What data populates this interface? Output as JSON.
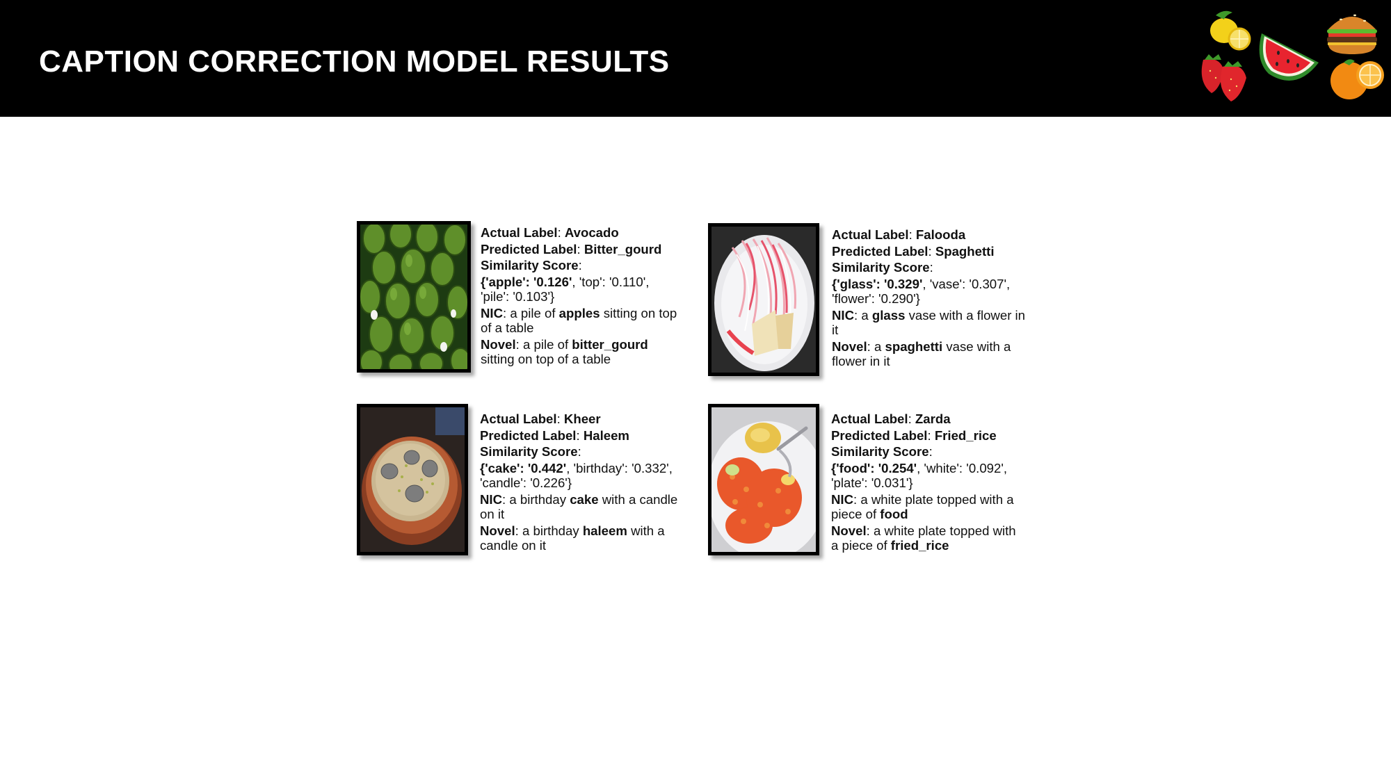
{
  "title": "CAPTION CORRECTION MODEL RESULTS",
  "colors": {
    "header_bg": "#000000",
    "title": "#ffffff"
  },
  "header_art": [
    "lemon-icon",
    "watermelon-icon",
    "burger-icon",
    "strawberry-icon",
    "orange-icon"
  ],
  "labels": {
    "actual": "Actual Label",
    "predicted": "Predicted Label",
    "similarity": "Similarity Score",
    "nic": "NIC",
    "novel": "Novel",
    "sep": ": "
  },
  "results": [
    {
      "image": "avocado-photo",
      "actual": "Avocado",
      "predicted": "Bitter_gourd",
      "score_top": "'apple': '0.126'",
      "score_rest1": ", 'top': '0.110',",
      "score_rest2": "'pile': '0.103'}",
      "nic_pre": "a pile of ",
      "nic_word": "apples",
      "nic_post1": " sitting on top",
      "nic_post2": "of a table",
      "novel_pre": "a pile of ",
      "novel_word": "bitter_gourd",
      "novel_post1": "",
      "novel_post2": "sitting on top of a table"
    },
    {
      "image": "falooda-photo",
      "actual": "Falooda",
      "predicted": "Spaghetti",
      "score_top": "'glass': '0.329'",
      "score_rest1": ", 'vase': '0.307',",
      "score_rest2": "'flower': '0.290'}",
      "nic_pre": "a ",
      "nic_word": "glass",
      "nic_post1": " vase with a flower in",
      "nic_post2": "it",
      "novel_pre": "a ",
      "novel_word": "spaghetti",
      "novel_post1": " vase with a",
      "novel_post2": "flower in it"
    },
    {
      "image": "kheer-photo",
      "actual": "Kheer",
      "predicted": "Haleem",
      "score_top": "'cake': '0.442'",
      "score_rest1": ", 'birthday': '0.332',",
      "score_rest2": "'candle': '0.226'}",
      "nic_pre": "a birthday ",
      "nic_word": "cake",
      "nic_post1": " with a candle",
      "nic_post2": "on it",
      "novel_pre": "a birthday ",
      "novel_word": "haleem",
      "novel_post1": " with a",
      "novel_post2": "candle on it"
    },
    {
      "image": "zarda-photo",
      "actual": "Zarda",
      "predicted": "Fried_rice",
      "score_top": "'food': '0.254'",
      "score_rest1": ", 'white': '0.092',",
      "score_rest2": "'plate': '0.031'}",
      "nic_pre": "a white plate topped with a",
      "nic_word": "",
      "nic_post1": "",
      "nic_post2_pre": "piece of ",
      "nic_post2_word": "food",
      "novel_pre": "a white plate topped with",
      "novel_word": "",
      "novel_post1": "",
      "novel_post2_pre": "a piece of ",
      "novel_post2_word": "fried_rice"
    }
  ]
}
